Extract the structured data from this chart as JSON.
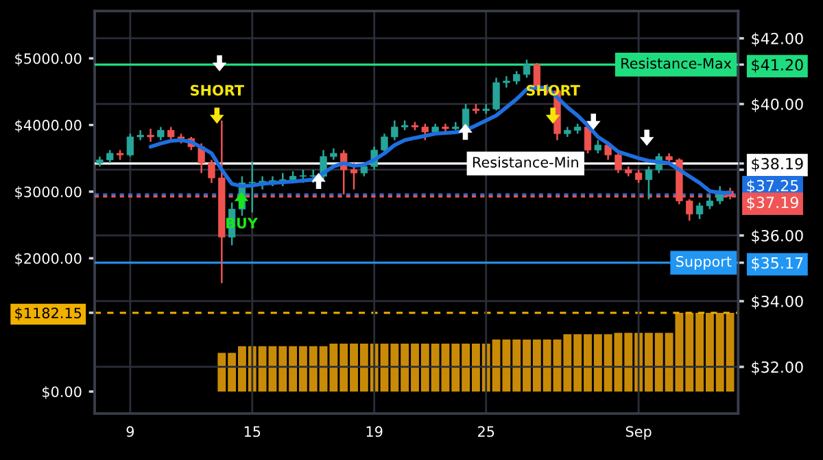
{
  "chart_data": {
    "type": "candlestick",
    "categories": [
      null,
      null,
      null,
      "9",
      null,
      null,
      null,
      null,
      null,
      null,
      null,
      null,
      null,
      null,
      null,
      "15",
      null,
      null,
      null,
      null,
      null,
      null,
      null,
      null,
      null,
      null,
      null,
      "19",
      null,
      null,
      null,
      null,
      null,
      null,
      null,
      null,
      null,
      null,
      "25",
      null,
      null,
      null,
      null,
      null,
      null,
      null,
      null,
      null,
      null,
      null,
      null,
      null,
      null,
      "Sep",
      null,
      null,
      null,
      null,
      null,
      null,
      null,
      null,
      null
    ],
    "series": [
      {
        "type": "bar",
        "axis": "y2",
        "color": "#c98b07",
        "values": [
          0,
          0,
          0,
          0,
          0,
          0,
          0,
          0,
          0,
          0,
          0,
          0,
          580,
          580,
          680,
          680,
          680,
          680,
          680,
          680,
          680,
          680,
          680,
          720,
          720,
          720,
          720,
          720,
          720,
          720,
          720,
          720,
          720,
          720,
          720,
          720,
          720,
          720,
          720,
          780,
          780,
          780,
          780,
          780,
          780,
          780,
          860,
          860,
          860,
          860,
          860,
          880,
          880,
          880,
          880,
          880,
          880,
          1182.15,
          1182.15,
          1182.15,
          1182.15,
          1182.15,
          1182.15
        ]
      },
      {
        "ohlc": [
          [
            38.2,
            38.4,
            38.1,
            38.3
          ],
          [
            38.3,
            38.6,
            38.2,
            38.5
          ],
          [
            38.5,
            38.6,
            38.3,
            38.45
          ],
          [
            38.45,
            39.1,
            38.4,
            39.0
          ],
          [
            39.0,
            39.2,
            38.9,
            39.05
          ],
          [
            39.05,
            39.25,
            38.85,
            39.0
          ],
          [
            39.0,
            39.3,
            38.9,
            39.2
          ],
          [
            39.2,
            39.3,
            38.9,
            39.0
          ],
          [
            39.0,
            39.1,
            38.8,
            38.95
          ],
          [
            38.95,
            39.0,
            38.6,
            38.7
          ],
          [
            38.7,
            38.8,
            37.9,
            38.2
          ],
          [
            38.2,
            38.3,
            37.6,
            37.75
          ],
          [
            37.75,
            39.5,
            34.55,
            35.95
          ],
          [
            35.95,
            37.0,
            35.7,
            36.8
          ],
          [
            36.8,
            37.8,
            36.6,
            37.6
          ],
          [
            37.6,
            38.25,
            36.7,
            37.6
          ],
          [
            37.6,
            37.8,
            37.4,
            37.65
          ],
          [
            37.65,
            37.8,
            37.5,
            37.65
          ],
          [
            37.65,
            37.9,
            37.5,
            37.7
          ],
          [
            37.7,
            37.95,
            37.6,
            37.8
          ],
          [
            37.8,
            38.0,
            37.6,
            37.8
          ],
          [
            37.8,
            38.0,
            37.6,
            37.8
          ],
          [
            37.8,
            38.6,
            37.7,
            38.4
          ],
          [
            38.4,
            38.65,
            38.3,
            38.5
          ],
          [
            38.5,
            38.6,
            37.25,
            38.0
          ],
          [
            38.0,
            38.2,
            37.4,
            37.9
          ],
          [
            37.9,
            38.2,
            37.8,
            38.1
          ],
          [
            38.1,
            38.7,
            38.0,
            38.6
          ],
          [
            38.6,
            39.1,
            38.5,
            39.0
          ],
          [
            39.0,
            39.5,
            38.9,
            39.3
          ],
          [
            39.3,
            39.5,
            39.2,
            39.35
          ],
          [
            39.35,
            39.45,
            39.2,
            39.3
          ],
          [
            39.3,
            39.4,
            38.9,
            39.15
          ],
          [
            39.15,
            39.4,
            39.1,
            39.3
          ],
          [
            39.3,
            39.4,
            39.1,
            39.25
          ],
          [
            39.25,
            39.45,
            39.2,
            39.3
          ],
          [
            39.3,
            40.0,
            39.25,
            39.85
          ],
          [
            39.85,
            40.0,
            39.7,
            39.8
          ],
          [
            39.8,
            40.0,
            39.7,
            39.85
          ],
          [
            39.85,
            40.8,
            39.8,
            40.65
          ],
          [
            40.65,
            40.85,
            40.5,
            40.7
          ],
          [
            40.7,
            41.0,
            40.6,
            40.9
          ],
          [
            40.9,
            41.35,
            40.8,
            41.2
          ],
          [
            41.2,
            41.25,
            40.4,
            40.5
          ],
          [
            40.5,
            40.6,
            40.3,
            40.4
          ],
          [
            40.4,
            40.5,
            38.9,
            39.1
          ],
          [
            39.1,
            39.3,
            39.0,
            39.2
          ],
          [
            39.2,
            39.4,
            39.1,
            39.3
          ],
          [
            39.3,
            39.35,
            38.5,
            38.6
          ],
          [
            38.6,
            38.9,
            38.5,
            38.75
          ],
          [
            38.75,
            38.8,
            38.3,
            38.45
          ],
          [
            38.45,
            38.5,
            37.9,
            38.0
          ],
          [
            38.0,
            38.1,
            37.8,
            37.9
          ],
          [
            37.9,
            38.0,
            37.6,
            37.7
          ],
          [
            37.7,
            38.1,
            37.1,
            38.0
          ],
          [
            38.0,
            38.5,
            37.9,
            38.4
          ],
          [
            38.4,
            38.5,
            38.2,
            38.3
          ],
          [
            38.3,
            38.35,
            36.95,
            37.05
          ],
          [
            37.05,
            37.1,
            36.45,
            36.65
          ],
          [
            36.65,
            37.0,
            36.5,
            36.9
          ],
          [
            36.9,
            37.2,
            36.8,
            37.05
          ],
          [
            37.05,
            37.5,
            36.95,
            37.35
          ],
          [
            37.35,
            37.45,
            37.1,
            37.19
          ]
        ],
        "colors": [
          "#26a69a",
          "#26a69a",
          "#ef5350",
          "#26a69a",
          "#26a69a",
          "#ef5350",
          "#26a69a",
          "#ef5350",
          "#ef5350",
          "#ef5350",
          "#ef5350",
          "#ef5350",
          "#ef5350",
          "#26a69a",
          "#26a69a",
          "#26a69a",
          "#26a69a",
          "#26a69a",
          "#26a69a",
          "#26a69a",
          "#26a69a",
          "#26a69a",
          "#26a69a",
          "#26a69a",
          "#ef5350",
          "#ef5350",
          "#26a69a",
          "#26a69a",
          "#26a69a",
          "#26a69a",
          "#26a69a",
          "#ef5350",
          "#ef5350",
          "#26a69a",
          "#ef5350",
          "#26a69a",
          "#26a69a",
          "#ef5350",
          "#26a69a",
          "#26a69a",
          "#26a69a",
          "#26a69a",
          "#26a69a",
          "#ef5350",
          "#ef5350",
          "#ef5350",
          "#26a69a",
          "#26a69a",
          "#ef5350",
          "#26a69a",
          "#ef5350",
          "#ef5350",
          "#ef5350",
          "#ef5350",
          "#26a69a",
          "#26a69a",
          "#ef5350",
          "#ef5350",
          "#ef5350",
          "#26a69a",
          "#26a69a",
          "#26a69a",
          "#ef5350"
        ]
      },
      {
        "type": "line",
        "color": "#1e6fe0",
        "values": [
          null,
          null,
          null,
          null,
          null,
          38.7,
          38.8,
          38.88,
          38.9,
          38.85,
          38.68,
          38.5,
          38.0,
          37.57,
          37.5,
          37.52,
          37.57,
          37.6,
          37.62,
          37.64,
          37.67,
          37.7,
          37.9,
          38.1,
          38.2,
          38.12,
          38.15,
          38.3,
          38.5,
          38.75,
          38.9,
          38.97,
          39.03,
          39.1,
          39.12,
          39.14,
          39.2,
          39.35,
          39.5,
          39.65,
          39.9,
          40.15,
          40.45,
          40.5,
          40.5,
          40.2,
          39.9,
          39.65,
          39.35,
          39.0,
          38.8,
          38.55,
          38.45,
          38.35,
          38.27,
          38.24,
          38.2,
          38.0,
          37.8,
          37.6,
          37.35,
          37.3,
          37.3
        ]
      }
    ],
    "ylim": [
      30.58,
      42.83
    ],
    "yticks": [
      {
        "value": 32,
        "label": "$32.00"
      },
      {
        "value": 34,
        "label": "$34.00"
      },
      {
        "value": 35.17,
        "label": "$35.17"
      },
      {
        "value": 36,
        "label": "$36.00"
      },
      {
        "value": 38,
        "label": null
      },
      {
        "value": 38.19,
        "label": "$38.19"
      },
      {
        "value": 40,
        "label": "$40.00"
      },
      {
        "value": 41.2,
        "label": "$41.20"
      },
      {
        "value": 42,
        "label": "$42.00"
      }
    ],
    "y2lim": [
      -330,
      5710
    ],
    "y2ticks": [
      {
        "value": 0,
        "label": "$0.00"
      },
      {
        "value": 1182.15,
        "label": "$1182.15"
      },
      {
        "value": 2000,
        "label": "$2000.00"
      },
      {
        "value": 3000,
        "label": "$3000.00"
      },
      {
        "value": 4000,
        "label": "$4000.00"
      },
      {
        "value": 5000,
        "label": "$5000.00"
      }
    ],
    "ref_lines": [
      {
        "axis": "y",
        "value": 41.2,
        "label": "Resistance-Max",
        "color": "#1fdc7f",
        "line_style": "solid"
      },
      {
        "axis": "y",
        "value": 38.19,
        "label": "Resistance-Min",
        "color": "#ffffff",
        "line_style": "solid"
      },
      {
        "axis": "y",
        "value": 37.25,
        "label": "$37.25",
        "color": "#1e6fe0",
        "line_style": "dotted"
      },
      {
        "axis": "y",
        "value": 37.19,
        "label": "$37.19",
        "color": "#f05454",
        "line_style": "dotted"
      },
      {
        "axis": "y",
        "value": 35.17,
        "label": "Support",
        "color": "#2196f3",
        "line_style": "solid"
      },
      {
        "axis": "y2",
        "value": 1182.15,
        "color": "#f0b000",
        "line_style": "dashed"
      }
    ],
    "annotations": [
      "SHORT",
      "BUY",
      "SHORT"
    ],
    "grid": true
  }
}
